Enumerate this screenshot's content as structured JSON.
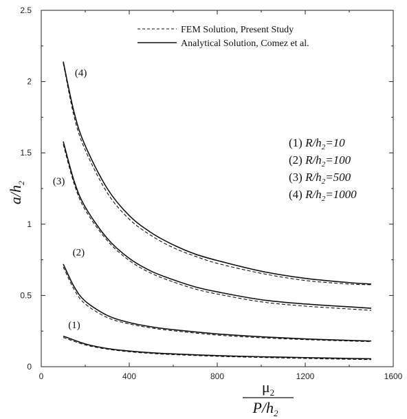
{
  "chart_data": {
    "type": "line",
    "xlim": [
      0,
      1600
    ],
    "ylim": [
      0,
      2.5
    ],
    "x_ticks": [
      0,
      400,
      800,
      1200,
      1600
    ],
    "x_tick_labels": [
      "0",
      "400",
      "800",
      "1200",
      "1600"
    ],
    "y_ticks": [
      0,
      0.5,
      1,
      1.5,
      2,
      2.5
    ],
    "y_tick_labels": [
      "0",
      "0.5",
      "1",
      "1.5",
      "2",
      "2.5"
    ],
    "xlabel": {
      "numerator": "μ",
      "numerator_sub": "2",
      "denominator": "P/h",
      "denominator_sub": "2"
    },
    "ylabel": {
      "main": "a/h",
      "sub": "2"
    },
    "grid": false,
    "legend": {
      "placement": "top-right",
      "entries": [
        {
          "style": "dashed",
          "label": "FEM Solution, Present Study"
        },
        {
          "style": "solid",
          "label": "Analytical Solution, Comez et al."
        }
      ]
    },
    "case_legend": [
      {
        "num": "(1)",
        "text": "R/h",
        "sub": "2",
        "eq": "=10"
      },
      {
        "num": "(2)",
        "text": "R/h",
        "sub": "2",
        "eq": "=100"
      },
      {
        "num": "(3)",
        "text": "R/h",
        "sub": "2",
        "eq": "=500"
      },
      {
        "num": "(4)",
        "text": "R/h",
        "sub": "2",
        "eq": "=1000"
      }
    ],
    "series": [
      {
        "label": "(1)",
        "style": "solid",
        "x": [
          100,
          200,
          300,
          400,
          500,
          600,
          800,
          1000,
          1200,
          1400,
          1500
        ],
        "y": [
          0.215,
          0.16,
          0.128,
          0.11,
          0.098,
          0.09,
          0.078,
          0.07,
          0.064,
          0.058,
          0.056
        ]
      },
      {
        "label": "(1)",
        "style": "dashed",
        "x": [
          100,
          200,
          300,
          400,
          500,
          600,
          800,
          1000,
          1200,
          1400,
          1500
        ],
        "y": [
          0.205,
          0.153,
          0.123,
          0.105,
          0.093,
          0.085,
          0.073,
          0.065,
          0.058,
          0.052,
          0.05
        ]
      },
      {
        "label": "(2)",
        "style": "solid",
        "x": [
          100,
          150,
          200,
          300,
          400,
          500,
          600,
          800,
          1000,
          1200,
          1400,
          1500
        ],
        "y": [
          0.72,
          0.56,
          0.46,
          0.36,
          0.31,
          0.28,
          0.26,
          0.23,
          0.21,
          0.195,
          0.185,
          0.18
        ]
      },
      {
        "label": "(2)",
        "style": "dashed",
        "x": [
          100,
          150,
          200,
          300,
          400,
          500,
          600,
          800,
          1000,
          1200,
          1400,
          1500
        ],
        "y": [
          0.7,
          0.54,
          0.44,
          0.345,
          0.3,
          0.272,
          0.252,
          0.222,
          0.203,
          0.19,
          0.18,
          0.176
        ]
      },
      {
        "label": "(3)",
        "style": "solid",
        "x": [
          100,
          150,
          200,
          300,
          400,
          500,
          600,
          700,
          800,
          1000,
          1200,
          1400,
          1500
        ],
        "y": [
          1.58,
          1.3,
          1.12,
          0.9,
          0.76,
          0.67,
          0.61,
          0.56,
          0.525,
          0.47,
          0.44,
          0.42,
          0.41
        ]
      },
      {
        "label": "(3)",
        "style": "dashed",
        "x": [
          100,
          150,
          200,
          300,
          400,
          500,
          600,
          700,
          800,
          1000,
          1200,
          1400,
          1500
        ],
        "y": [
          1.56,
          1.28,
          1.1,
          0.885,
          0.745,
          0.655,
          0.595,
          0.545,
          0.51,
          0.455,
          0.425,
          0.405,
          0.395
        ]
      },
      {
        "label": "(4)",
        "style": "solid",
        "x": [
          100,
          150,
          200,
          300,
          400,
          500,
          600,
          700,
          800,
          1000,
          1200,
          1400,
          1500
        ],
        "y": [
          2.14,
          1.78,
          1.55,
          1.25,
          1.06,
          0.94,
          0.855,
          0.79,
          0.745,
          0.67,
          0.62,
          0.59,
          0.58
        ]
      },
      {
        "label": "(4)",
        "style": "dashed",
        "x": [
          100,
          150,
          200,
          300,
          400,
          500,
          600,
          700,
          800,
          1000,
          1200,
          1400,
          1500
        ],
        "y": [
          2.13,
          1.75,
          1.52,
          1.22,
          1.035,
          0.92,
          0.835,
          0.775,
          0.725,
          0.655,
          0.605,
          0.58,
          0.575
        ]
      }
    ],
    "curve_labels": [
      {
        "text": "(1)",
        "x": 150,
        "y": 0.27
      },
      {
        "text": "(2)",
        "x": 170,
        "y": 0.78
      },
      {
        "text": "(3)",
        "x": 80,
        "y": 1.28
      },
      {
        "text": "(4)",
        "x": 180,
        "y": 2.04
      }
    ],
    "colors": {
      "line": "#111111",
      "axis": "#222222",
      "text": "#111111"
    }
  }
}
